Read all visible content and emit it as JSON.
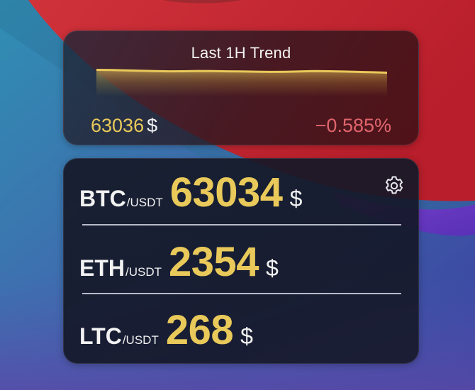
{
  "trend_widget": {
    "title": "Last 1H Trend",
    "price_value": "63036",
    "price_currency": "$",
    "change_percent": "−0.585%",
    "sparkline_color": "#e9c95a",
    "change_color": "#e0656d",
    "chart_data": {
      "type": "area",
      "x": [
        0,
        1,
        2,
        3,
        4,
        5,
        6,
        7,
        8,
        9,
        10,
        11,
        12,
        13,
        14,
        15,
        16,
        17,
        18,
        19,
        20
      ],
      "values": [
        63160,
        63150,
        63140,
        63120,
        63105,
        63095,
        63100,
        63110,
        63105,
        63095,
        63090,
        63080,
        63070,
        63075,
        63090,
        63105,
        63100,
        63085,
        63070,
        63055,
        63036
      ],
      "title": "Last 1H Trend",
      "xlabel": "",
      "ylabel": "",
      "ylim": [
        62000,
        63300
      ],
      "grid": false
    }
  },
  "prices_widget": {
    "settings_icon": "gear-icon",
    "rows": [
      {
        "symbol": "BTC",
        "pair": "/USDT",
        "price": "63034",
        "currency": "$"
      },
      {
        "symbol": "ETH",
        "pair": "/USDT",
        "price": "2354",
        "currency": "$"
      },
      {
        "symbol": "LTC",
        "pair": "/USDT",
        "price": "268",
        "currency": "$"
      }
    ],
    "price_color": "#e9c95a"
  }
}
